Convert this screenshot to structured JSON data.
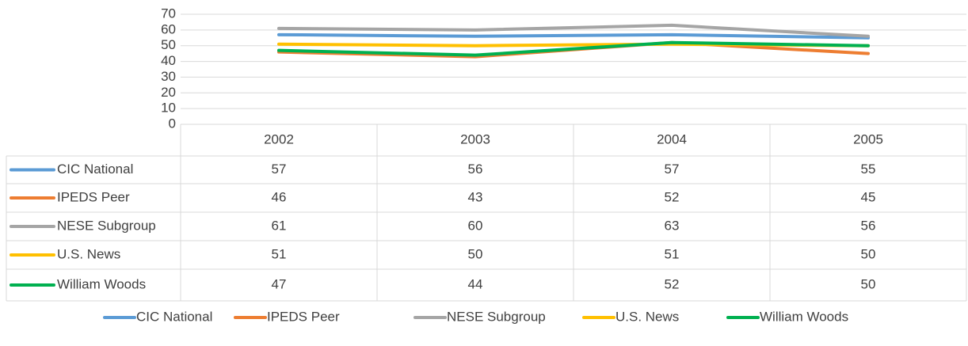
{
  "chart_data": {
    "type": "line",
    "categories": [
      "2002",
      "2003",
      "2004",
      "2005"
    ],
    "series": [
      {
        "name": "CIC National",
        "color": "#5b9bd5",
        "values": [
          57,
          56,
          57,
          55
        ]
      },
      {
        "name": "IPEDS Peer",
        "color": "#ed7d31",
        "values": [
          46,
          43,
          52,
          45
        ]
      },
      {
        "name": "NESE Subgroup",
        "color": "#a5a5a5",
        "values": [
          61,
          60,
          63,
          56
        ]
      },
      {
        "name": "U.S. News",
        "color": "#ffc000",
        "values": [
          51,
          50,
          51,
          50
        ]
      },
      {
        "name": "William Woods",
        "color": "#00b050",
        "values": [
          47,
          44,
          52,
          50
        ]
      }
    ],
    "ylim": [
      0,
      70
    ],
    "yticks": [
      0,
      10,
      20,
      30,
      40,
      50,
      60,
      70
    ],
    "grid": true,
    "legend": "bottom",
    "data_table": true
  }
}
